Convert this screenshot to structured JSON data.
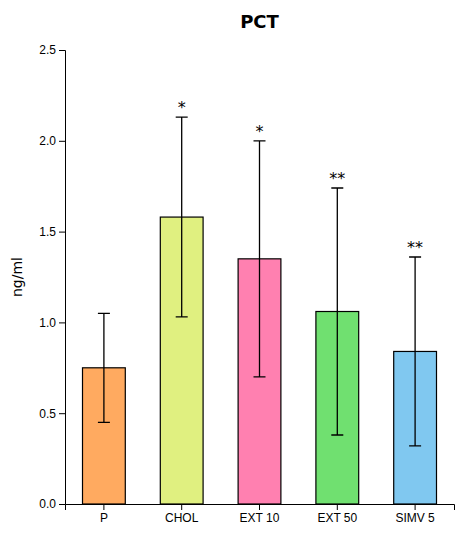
{
  "chart_data": {
    "type": "bar",
    "title": "PCT",
    "ylabel": "ng/ml",
    "categories": [
      "P",
      "CHOL",
      "EXT 10",
      "EXT 50",
      "SIMV 5"
    ],
    "values": [
      0.75,
      1.58,
      1.35,
      1.06,
      0.84
    ],
    "errors": [
      0.3,
      0.55,
      0.65,
      0.68,
      0.52
    ],
    "significance": [
      null,
      "*",
      "*",
      "**",
      "**"
    ],
    "colors": [
      "#FFAA60",
      "#E0F080",
      "#FF80B0",
      "#70E070",
      "#80C8F0"
    ],
    "ylim": [
      0,
      2.5
    ],
    "yticks": [
      {
        "value": 0,
        "label": "0.0"
      },
      0.5,
      {
        "value": 1,
        "label": "1.0"
      },
      1.5,
      {
        "value": 2,
        "label": "2.0"
      },
      2.5
    ],
    "grid": false
  }
}
